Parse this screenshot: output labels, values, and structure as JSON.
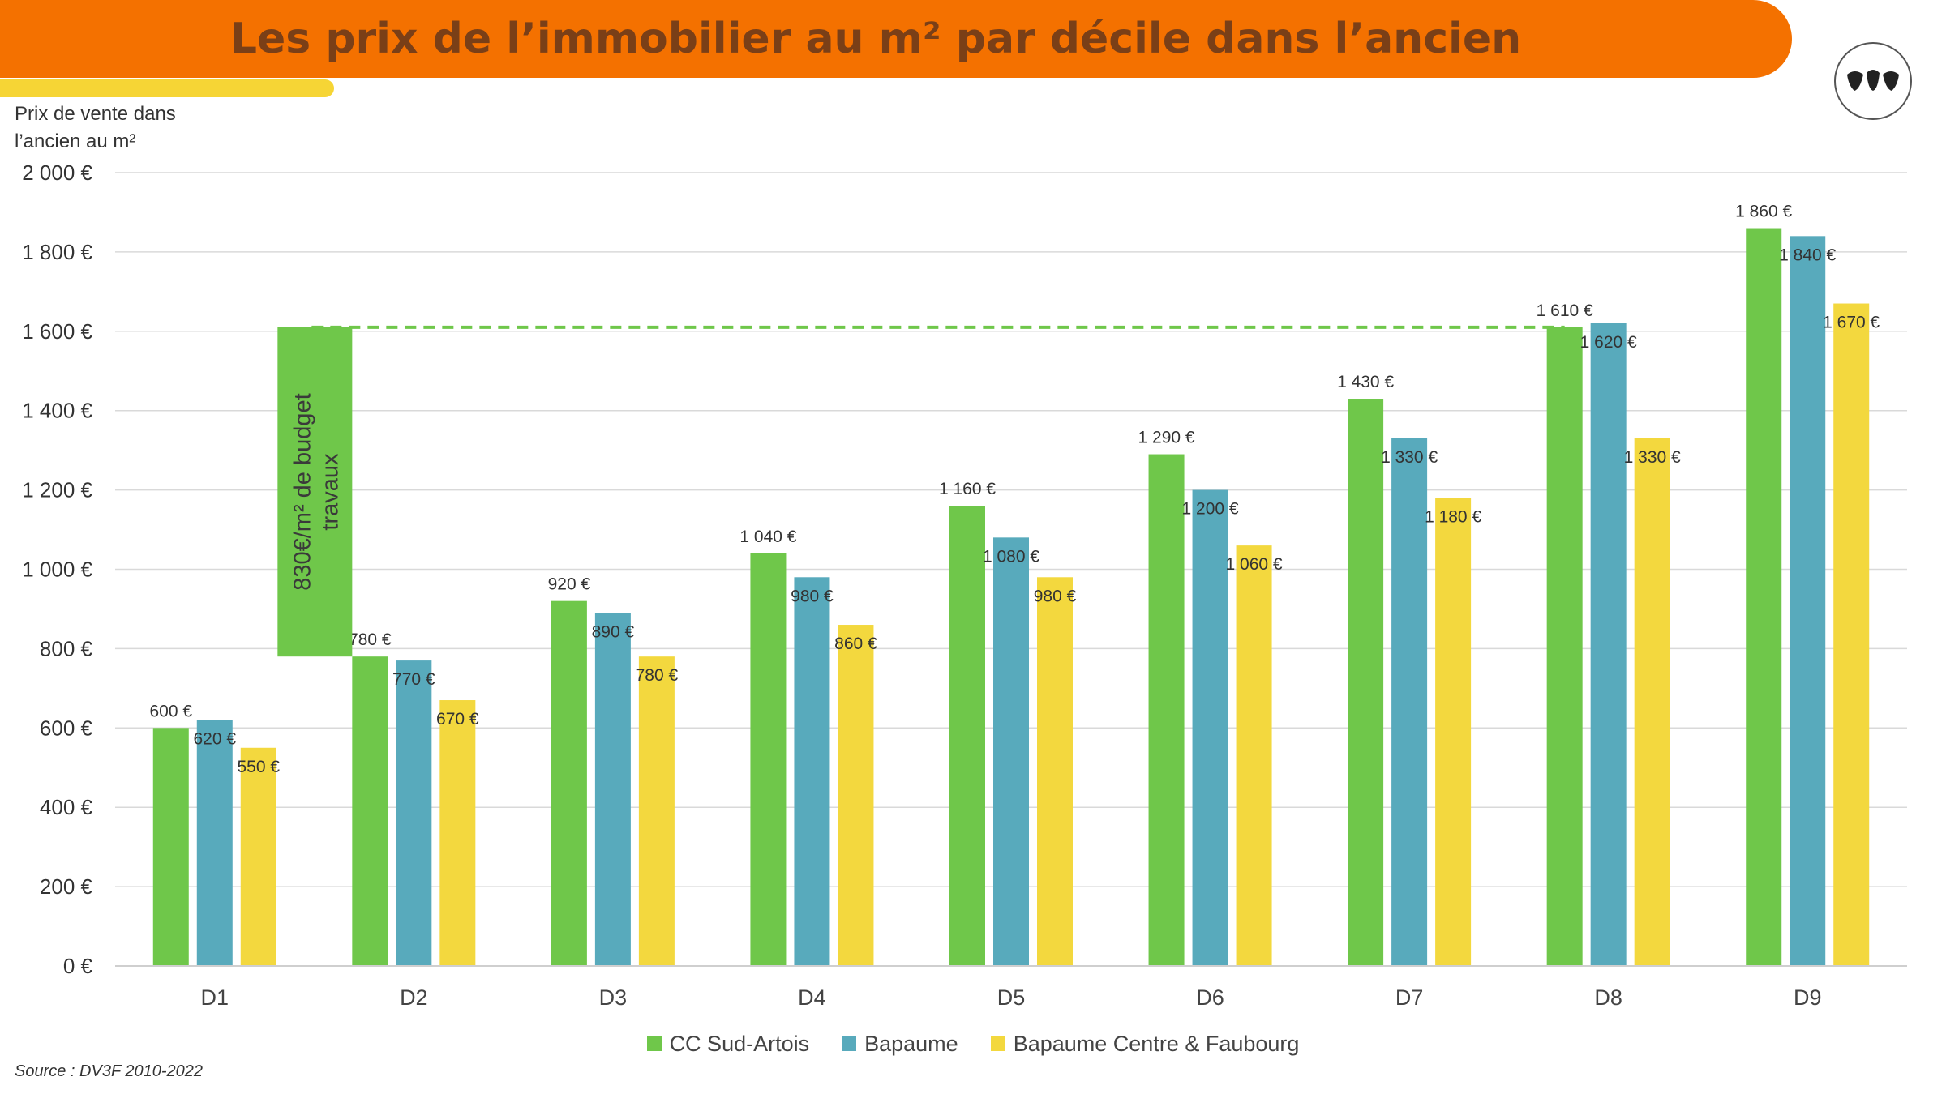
{
  "title": "Les prix de l’immobilier au m² par décile dans l’ancien",
  "y_axis_label": "Prix de vente dans l’ancien au m²",
  "source": "Source : DV3F 2010-2022",
  "colors": {
    "title_bg": "#f47100",
    "title_text": "#7a3f17",
    "accent": "#f6d535",
    "series": [
      "#6fc74a",
      "#58aabc",
      "#f3d83e"
    ],
    "annotation": "#6fc74a"
  },
  "annotation": {
    "text": "830€/m² de budget travaux",
    "from_value": 780,
    "to_value": 1610,
    "line_value": 1610,
    "from_category": "D2",
    "to_category": "D8"
  },
  "chart_data": {
    "type": "bar",
    "title": "Les prix de l’immobilier au m² par décile dans l’ancien",
    "xlabel": "",
    "ylabel": "Prix de vente dans l’ancien au m²",
    "ylim": [
      0,
      2000
    ],
    "yticks": [
      0,
      200,
      400,
      600,
      800,
      1000,
      1200,
      1400,
      1600,
      1800,
      2000
    ],
    "ytick_labels": [
      "0 €",
      "200 €",
      "400 €",
      "600 €",
      "800 €",
      "1 000 €",
      "1 200 €",
      "1 400 €",
      "1 600 €",
      "1 800 €",
      "2 000 €"
    ],
    "grid": true,
    "legend": "bottom",
    "categories": [
      "D1",
      "D2",
      "D3",
      "D4",
      "D5",
      "D6",
      "D7",
      "D8",
      "D9"
    ],
    "series": [
      {
        "name": "CC Sud-Artois",
        "values": [
          600,
          780,
          920,
          1040,
          1160,
          1290,
          1430,
          1610,
          1860
        ],
        "labels": [
          "600 €",
          "780 €",
          "920 €",
          "1 040 €",
          "1 160 €",
          "1 290 €",
          "1 430 €",
          "1 610 €",
          "1 860 €"
        ]
      },
      {
        "name": "Bapaume",
        "values": [
          620,
          770,
          890,
          980,
          1080,
          1200,
          1330,
          1620,
          1840
        ],
        "labels": [
          "620 €",
          "770 €",
          "890 €",
          "980 €",
          "1 080 €",
          "1 200 €",
          "1 330 €",
          "1 620 €",
          "1 840 €"
        ]
      },
      {
        "name": "Bapaume Centre & Faubourg",
        "values": [
          550,
          670,
          780,
          860,
          980,
          1060,
          1180,
          1330,
          1670
        ],
        "labels": [
          "550 €",
          "670 €",
          "780 €",
          "860 €",
          "980 €",
          "1 060 €",
          "1 180 €",
          "1 330 €",
          "1 670 €"
        ]
      }
    ]
  }
}
